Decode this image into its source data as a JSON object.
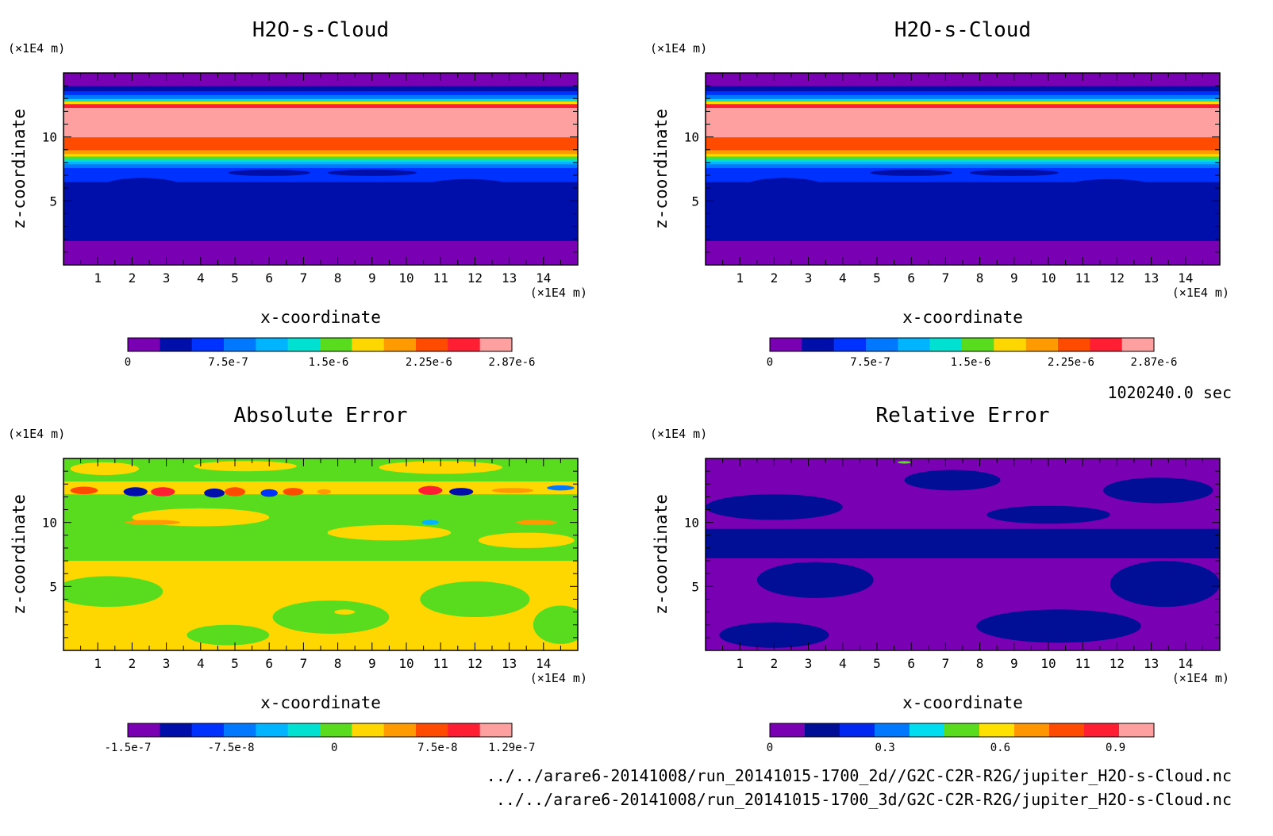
{
  "colors": {
    "rainbow12": [
      "#7a00b4",
      "#000faa",
      "#0032ff",
      "#0078ff",
      "#00b4ff",
      "#00e1d2",
      "#5adc1e",
      "#ffd700",
      "#ff9b00",
      "#ff4b00",
      "#ff1e32",
      "#ffa0a0"
    ],
    "rel9": [
      "#7a00b4",
      "#000f96",
      "#0028f0",
      "#0078ff",
      "#00dcf0",
      "#5adc1e",
      "#ffe100",
      "#ff9600",
      "#ff4b00",
      "#ff1e32",
      "#ffa0a0"
    ]
  },
  "info": {
    "time": "1020240.0 sec",
    "file1": "../../arare6-20141008/run_20141015-1700_2d//G2C-C2R-R2G/jupiter_H2O-s-Cloud.nc",
    "file2": "../../arare6-20141008/run_20141015-1700_3d/G2C-C2R-R2G/jupiter_H2O-s-Cloud.nc"
  },
  "chart_data": [
    {
      "type": "heatmap",
      "title": "H2O-s-Cloud",
      "xlabel": "x-coordinate",
      "ylabel": "z-coordinate",
      "x_unit": "(×1E4 m)",
      "y_unit": "(×1E4 m)",
      "xlim": [
        0,
        15
      ],
      "ylim": [
        0,
        15
      ],
      "x_ticks": [
        1,
        2,
        3,
        4,
        5,
        6,
        7,
        8,
        9,
        10,
        11,
        12,
        13,
        14
      ],
      "y_ticks": [
        5,
        10
      ],
      "bands_bottom_to_top": [
        {
          "from": 0,
          "to": 1.9,
          "level": 0
        },
        {
          "from": 1.9,
          "to": 6.5,
          "level": 1
        },
        {
          "from": 6.5,
          "to": 7.6,
          "level": 2
        },
        {
          "from": 7.6,
          "to": 7.9,
          "level": 3
        },
        {
          "from": 7.9,
          "to": 8.1,
          "level": 4
        },
        {
          "from": 8.1,
          "to": 8.3,
          "level": 5
        },
        {
          "from": 8.3,
          "to": 8.5,
          "level": 6
        },
        {
          "from": 8.5,
          "to": 8.7,
          "level": 7
        },
        {
          "from": 8.7,
          "to": 9.0,
          "level": 8
        },
        {
          "from": 9.0,
          "to": 10.0,
          "level": 9
        },
        {
          "from": 10.0,
          "to": 12.3,
          "level": 11
        },
        {
          "from": 12.3,
          "to": 12.6,
          "level": 10
        },
        {
          "from": 12.6,
          "to": 12.8,
          "level": 7
        },
        {
          "from": 12.8,
          "to": 13.0,
          "level": 5
        },
        {
          "from": 13.0,
          "to": 13.3,
          "level": 3
        },
        {
          "from": 13.3,
          "to": 13.6,
          "level": 2
        },
        {
          "from": 13.6,
          "to": 14.0,
          "level": 1
        },
        {
          "from": 14.0,
          "to": 15.0,
          "level": 0
        }
      ],
      "colorbar": {
        "min": 0,
        "max": 2.87e-06,
        "labels": [
          "0",
          "7.5e-7",
          "1.5e-6",
          "2.25e-6",
          "2.87e-6"
        ],
        "label_values": [
          0,
          7.5e-07,
          1.5e-06,
          2.25e-06,
          2.87e-06
        ]
      }
    },
    {
      "type": "heatmap",
      "title": "H2O-s-Cloud",
      "xlabel": "x-coordinate",
      "ylabel": "z-coordinate",
      "x_unit": "(×1E4 m)",
      "y_unit": "(×1E4 m)",
      "xlim": [
        0,
        15
      ],
      "ylim": [
        0,
        15
      ],
      "x_ticks": [
        1,
        2,
        3,
        4,
        5,
        6,
        7,
        8,
        9,
        10,
        11,
        12,
        13,
        14
      ],
      "y_ticks": [
        5,
        10
      ],
      "bands_bottom_to_top": [
        {
          "from": 0,
          "to": 1.9,
          "level": 0
        },
        {
          "from": 1.9,
          "to": 6.5,
          "level": 1
        },
        {
          "from": 6.5,
          "to": 7.6,
          "level": 2
        },
        {
          "from": 7.6,
          "to": 7.9,
          "level": 3
        },
        {
          "from": 7.9,
          "to": 8.1,
          "level": 4
        },
        {
          "from": 8.1,
          "to": 8.3,
          "level": 5
        },
        {
          "from": 8.3,
          "to": 8.5,
          "level": 6
        },
        {
          "from": 8.5,
          "to": 8.7,
          "level": 7
        },
        {
          "from": 8.7,
          "to": 9.0,
          "level": 8
        },
        {
          "from": 9.0,
          "to": 10.0,
          "level": 9
        },
        {
          "from": 10.0,
          "to": 12.3,
          "level": 11
        },
        {
          "from": 12.3,
          "to": 12.6,
          "level": 10
        },
        {
          "from": 12.6,
          "to": 12.8,
          "level": 7
        },
        {
          "from": 12.8,
          "to": 13.0,
          "level": 5
        },
        {
          "from": 13.0,
          "to": 13.3,
          "level": 3
        },
        {
          "from": 13.3,
          "to": 13.6,
          "level": 2
        },
        {
          "from": 13.6,
          "to": 14.0,
          "level": 1
        },
        {
          "from": 14.0,
          "to": 15.0,
          "level": 0
        }
      ],
      "colorbar": {
        "min": 0,
        "max": 2.87e-06,
        "labels": [
          "0",
          "7.5e-7",
          "1.5e-6",
          "2.25e-6",
          "2.87e-6"
        ],
        "label_values": [
          0,
          7.5e-07,
          1.5e-06,
          2.25e-06,
          2.87e-06
        ]
      }
    },
    {
      "type": "heatmap",
      "title": "Absolute Error",
      "xlabel": "x-coordinate",
      "ylabel": "z-coordinate",
      "x_unit": "(×1E4 m)",
      "y_unit": "(×1E4 m)",
      "xlim": [
        0,
        15
      ],
      "ylim": [
        0,
        15
      ],
      "x_ticks": [
        1,
        2,
        3,
        4,
        5,
        6,
        7,
        8,
        9,
        10,
        11,
        12,
        13,
        14
      ],
      "y_ticks": [
        5,
        10
      ],
      "base_level": 7,
      "regions": [
        {
          "kind": "rect",
          "x0": 0,
          "x1": 15,
          "y0": 7.0,
          "y1": 12.2,
          "level": 6
        },
        {
          "kind": "rect",
          "x0": 0,
          "x1": 15,
          "y0": 13.2,
          "y1": 15,
          "level": 6
        },
        {
          "kind": "ellipse",
          "cx": 1.2,
          "cy": 14.2,
          "rx": 1.0,
          "ry": 0.5,
          "level": 7
        },
        {
          "kind": "ellipse",
          "cx": 5.3,
          "cy": 14.4,
          "rx": 1.5,
          "ry": 0.4,
          "level": 7
        },
        {
          "kind": "ellipse",
          "cx": 11.0,
          "cy": 14.3,
          "rx": 1.8,
          "ry": 0.5,
          "level": 7
        },
        {
          "kind": "ellipse",
          "cx": 4.0,
          "cy": 10.4,
          "rx": 2.0,
          "ry": 0.7,
          "level": 7
        },
        {
          "kind": "ellipse",
          "cx": 9.5,
          "cy": 9.2,
          "rx": 1.8,
          "ry": 0.6,
          "level": 7
        },
        {
          "kind": "ellipse",
          "cx": 13.5,
          "cy": 8.6,
          "rx": 1.4,
          "ry": 0.6,
          "level": 7
        },
        {
          "kind": "ellipse",
          "cx": 1.3,
          "cy": 4.6,
          "rx": 1.6,
          "ry": 1.2,
          "level": 6
        },
        {
          "kind": "ellipse",
          "cx": 7.8,
          "cy": 2.6,
          "rx": 1.7,
          "ry": 1.3,
          "level": 6
        },
        {
          "kind": "ellipse",
          "cx": 12.0,
          "cy": 4.0,
          "rx": 1.6,
          "ry": 1.4,
          "level": 6
        },
        {
          "kind": "ellipse",
          "cx": 14.5,
          "cy": 2.0,
          "rx": 0.8,
          "ry": 1.5,
          "level": 6
        },
        {
          "kind": "ellipse",
          "cx": 4.8,
          "cy": 1.2,
          "rx": 1.2,
          "ry": 0.8,
          "level": 6
        },
        {
          "kind": "ellipse",
          "cx": 8.2,
          "cy": 3.0,
          "rx": 0.3,
          "ry": 0.2,
          "level": 7
        },
        {
          "kind": "ellipse",
          "cx": 0.6,
          "cy": 12.5,
          "rx": 0.4,
          "ry": 0.3,
          "level": 9
        },
        {
          "kind": "ellipse",
          "cx": 2.9,
          "cy": 12.4,
          "rx": 0.35,
          "ry": 0.35,
          "level": 10
        },
        {
          "kind": "ellipse",
          "cx": 5.0,
          "cy": 12.4,
          "rx": 0.3,
          "ry": 0.35,
          "level": 9
        },
        {
          "kind": "ellipse",
          "cx": 6.7,
          "cy": 12.4,
          "rx": 0.3,
          "ry": 0.3,
          "level": 9
        },
        {
          "kind": "ellipse",
          "cx": 7.6,
          "cy": 12.4,
          "rx": 0.2,
          "ry": 0.2,
          "level": 8
        },
        {
          "kind": "ellipse",
          "cx": 10.7,
          "cy": 12.5,
          "rx": 0.35,
          "ry": 0.35,
          "level": 10
        },
        {
          "kind": "ellipse",
          "cx": 13.1,
          "cy": 12.5,
          "rx": 0.6,
          "ry": 0.2,
          "level": 8
        },
        {
          "kind": "ellipse",
          "cx": 2.1,
          "cy": 12.4,
          "rx": 0.35,
          "ry": 0.35,
          "level": 1
        },
        {
          "kind": "ellipse",
          "cx": 4.4,
          "cy": 12.3,
          "rx": 0.3,
          "ry": 0.35,
          "level": 1
        },
        {
          "kind": "ellipse",
          "cx": 6.0,
          "cy": 12.3,
          "rx": 0.25,
          "ry": 0.3,
          "level": 2
        },
        {
          "kind": "ellipse",
          "cx": 11.6,
          "cy": 12.4,
          "rx": 0.35,
          "ry": 0.3,
          "level": 1
        },
        {
          "kind": "ellipse",
          "cx": 14.5,
          "cy": 12.7,
          "rx": 0.4,
          "ry": 0.2,
          "level": 3
        },
        {
          "kind": "ellipse",
          "cx": 2.6,
          "cy": 10.0,
          "rx": 0.8,
          "ry": 0.2,
          "level": 8
        },
        {
          "kind": "ellipse",
          "cx": 13.8,
          "cy": 10.0,
          "rx": 0.6,
          "ry": 0.2,
          "level": 8
        },
        {
          "kind": "ellipse",
          "cx": 10.7,
          "cy": 10.0,
          "rx": 0.25,
          "ry": 0.2,
          "level": 4
        }
      ],
      "colorbar": {
        "min": -1.5e-07,
        "max": 1.29e-07,
        "labels": [
          "-1.5e-7",
          "-7.5e-8",
          "0",
          "7.5e-8",
          "1.29e-7"
        ],
        "label_values": [
          -1.5e-07,
          -7.5e-08,
          0,
          7.5e-08,
          1.29e-07
        ]
      }
    },
    {
      "type": "heatmap",
      "title": "Relative Error",
      "xlabel": "x-coordinate",
      "ylabel": "z-coordinate",
      "x_unit": "(×1E4 m)",
      "y_unit": "(×1E4 m)",
      "xlim": [
        0,
        15
      ],
      "ylim": [
        0,
        15
      ],
      "x_ticks": [
        1,
        2,
        3,
        4,
        5,
        6,
        7,
        8,
        9,
        10,
        11,
        12,
        13,
        14
      ],
      "y_ticks": [
        5,
        10
      ],
      "base_level": 0,
      "regions": [
        {
          "kind": "rect",
          "x0": 0,
          "x1": 15,
          "y0": 7.2,
          "y1": 9.5,
          "level": 1
        },
        {
          "kind": "ellipse",
          "cx": 2.0,
          "cy": 11.2,
          "rx": 2.0,
          "ry": 1.0,
          "level": 1
        },
        {
          "kind": "ellipse",
          "cx": 7.2,
          "cy": 13.3,
          "rx": 1.4,
          "ry": 0.8,
          "level": 1
        },
        {
          "kind": "ellipse",
          "cx": 13.2,
          "cy": 12.5,
          "rx": 1.6,
          "ry": 1.0,
          "level": 1
        },
        {
          "kind": "ellipse",
          "cx": 10.0,
          "cy": 10.6,
          "rx": 1.8,
          "ry": 0.7,
          "level": 1
        },
        {
          "kind": "ellipse",
          "cx": 3.2,
          "cy": 5.5,
          "rx": 1.7,
          "ry": 1.4,
          "level": 1
        },
        {
          "kind": "ellipse",
          "cx": 13.4,
          "cy": 5.2,
          "rx": 1.6,
          "ry": 1.8,
          "level": 1
        },
        {
          "kind": "ellipse",
          "cx": 10.3,
          "cy": 1.9,
          "rx": 2.4,
          "ry": 1.3,
          "level": 1
        },
        {
          "kind": "ellipse",
          "cx": 2.0,
          "cy": 1.2,
          "rx": 1.6,
          "ry": 1.0,
          "level": 1
        },
        {
          "kind": "ellipse",
          "cx": 8.2,
          "cy": 3.0,
          "rx": 0.3,
          "ry": 0.2,
          "level": 0
        },
        {
          "kind": "ellipse",
          "cx": 5.8,
          "cy": 14.7,
          "rx": 0.2,
          "ry": 0.1,
          "level": 5
        }
      ],
      "colorbar": {
        "min": 0,
        "max": 1.0,
        "labels": [
          "0",
          "0.3",
          "0.6",
          "0.9"
        ],
        "label_values": [
          0.0,
          0.3,
          0.6,
          0.9
        ]
      }
    }
  ]
}
